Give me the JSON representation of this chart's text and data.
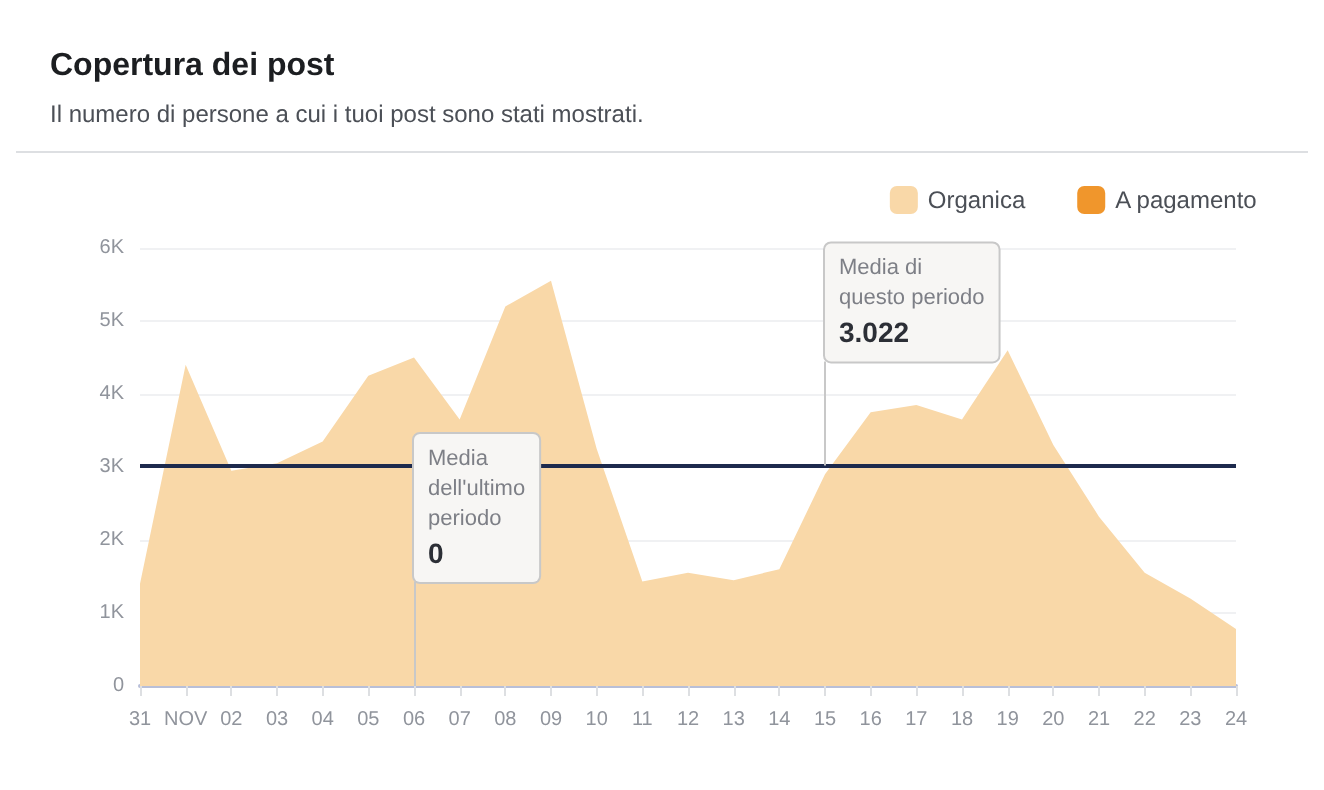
{
  "chart_data": {
    "type": "area",
    "title": "Copertura dei post",
    "subtitle": "Il numero di persone a cui i tuoi post sono stati mostrati.",
    "categories": [
      "31",
      "NOV",
      "02",
      "03",
      "04",
      "05",
      "06",
      "07",
      "08",
      "09",
      "10",
      "11",
      "12",
      "13",
      "14",
      "15",
      "16",
      "17",
      "18",
      "19",
      "20",
      "21",
      "22",
      "23",
      "24"
    ],
    "series": [
      {
        "name": "Organica",
        "color": "#f9d8a8",
        "values": [
          1400,
          4400,
          2950,
          3050,
          3350,
          4250,
          4500,
          3650,
          5200,
          5550,
          3250,
          1430,
          1550,
          1450,
          1600,
          2900,
          3750,
          3850,
          3650,
          4600,
          3300,
          2320,
          1550,
          1200,
          780
        ]
      },
      {
        "name": "A pagamento",
        "color": "#f0962c",
        "values": [
          null,
          null,
          null,
          null,
          null,
          null,
          null,
          null,
          null,
          null,
          null,
          null,
          null,
          null,
          null,
          null,
          null,
          null,
          null,
          null,
          null,
          null,
          null,
          null,
          null
        ]
      }
    ],
    "ylim": [
      0,
      6000
    ],
    "yticks": [
      0,
      {
        "value": 1000,
        "label": "1K"
      },
      {
        "value": 2000,
        "label": "2K"
      },
      {
        "value": 3000,
        "label": "3K"
      },
      {
        "value": 4000,
        "label": "4K"
      },
      {
        "value": 5000,
        "label": "5K"
      },
      {
        "value": 6000,
        "label": "6K"
      }
    ],
    "ref_lines": [
      {
        "axis": "y",
        "value": 3022,
        "color": "#1d2a4d",
        "line_style": "solid"
      }
    ],
    "annotations": [
      {
        "text": "Media di\nquesto periodo\n3.022",
        "x": "15",
        "y": 3022
      },
      {
        "text": "Media\ndell'ultimo\nperiodo\n0",
        "x": "06",
        "y": 0
      }
    ],
    "grid": "y",
    "legend": "top right",
    "marker": "none"
  }
}
